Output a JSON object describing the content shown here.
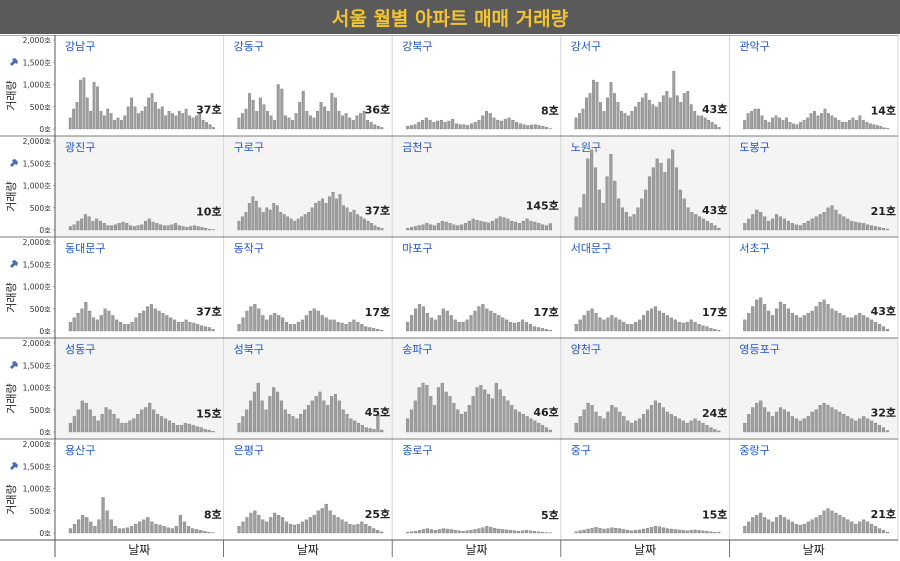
{
  "title": "서울 월별 아파트 매매 거래량",
  "colors": {
    "title_bg": "#5a5a5a",
    "title_fg": "#f3c331",
    "bar": "#9e9e9e",
    "bar_stroke": "#6f6f6f",
    "label": "#1f54c7",
    "alt_row_bg": "#f4f4f4",
    "grid": "#d6d6d6"
  },
  "axes": {
    "ylabel": "거래량",
    "xlabel": "날짜",
    "yticks": [
      "0호",
      "500호",
      "1,000호",
      "1,500호",
      "2,000호"
    ],
    "ylim": [
      0,
      2000
    ],
    "pin_icon": "pin-icon"
  },
  "chart_data": {
    "type": "bar",
    "layout": "small-multiples 5x5",
    "title": "서울 월별 아파트 매매 거래량",
    "ylabel": "거래량",
    "xlabel": "날짜",
    "ylim": [
      0,
      2000
    ],
    "series": [
      {
        "name": "강남구",
        "last_label": "37호",
        "values": [
          250,
          450,
          600,
          1100,
          1150,
          700,
          400,
          1050,
          950,
          400,
          300,
          450,
          350,
          200,
          250,
          200,
          300,
          500,
          700,
          500,
          350,
          400,
          500,
          700,
          800,
          600,
          450,
          500,
          300,
          400,
          350,
          300,
          400,
          350,
          450,
          300,
          250,
          300,
          350,
          200,
          150,
          100,
          37
        ]
      },
      {
        "name": "강동구",
        "last_label": "36호",
        "values": [
          250,
          350,
          450,
          800,
          650,
          400,
          700,
          550,
          400,
          300,
          200,
          1000,
          900,
          300,
          250,
          200,
          350,
          600,
          850,
          400,
          300,
          250,
          400,
          600,
          500,
          400,
          800,
          700,
          400,
          300,
          350,
          250,
          200,
          300,
          350,
          400,
          200,
          150,
          100,
          60,
          36
        ]
      },
      {
        "name": "강북구",
        "last_label": "8호",
        "values": [
          60,
          80,
          100,
          150,
          200,
          250,
          200,
          150,
          180,
          200,
          150,
          180,
          220,
          120,
          100,
          100,
          80,
          120,
          150,
          200,
          300,
          400,
          350,
          250,
          200,
          180,
          220,
          250,
          200,
          150,
          120,
          100,
          80,
          90,
          100,
          80,
          60,
          40,
          8
        ]
      },
      {
        "name": "강서구",
        "last_label": "43호",
        "values": [
          250,
          350,
          450,
          700,
          800,
          1100,
          1050,
          600,
          400,
          700,
          1050,
          800,
          600,
          400,
          350,
          300,
          400,
          500,
          600,
          700,
          800,
          650,
          550,
          500,
          600,
          750,
          850,
          700,
          1300,
          750,
          600,
          800,
          850,
          550,
          400,
          300,
          300,
          250,
          200,
          150,
          100,
          43
        ]
      },
      {
        "name": "관악구",
        "last_label": "14호",
        "values": [
          200,
          350,
          400,
          450,
          450,
          300,
          200,
          150,
          250,
          300,
          250,
          200,
          250,
          150,
          120,
          100,
          150,
          200,
          250,
          350,
          400,
          300,
          350,
          450,
          350,
          300,
          250,
          200,
          150,
          150,
          200,
          250,
          200,
          300,
          200,
          150,
          120,
          100,
          80,
          60,
          30,
          14
        ]
      },
      {
        "name": "광진구",
        "last_label": "10호",
        "values": [
          80,
          120,
          200,
          250,
          350,
          300,
          200,
          250,
          200,
          150,
          100,
          100,
          120,
          150,
          180,
          150,
          100,
          80,
          100,
          120,
          200,
          250,
          180,
          150,
          120,
          100,
          100,
          120,
          150,
          100,
          80,
          60,
          80,
          100,
          80,
          60,
          40,
          20,
          10
        ]
      },
      {
        "name": "구로구",
        "last_label": "37호",
        "values": [
          200,
          300,
          400,
          600,
          750,
          650,
          500,
          400,
          500,
          450,
          600,
          550,
          400,
          350,
          300,
          250,
          200,
          250,
          300,
          350,
          400,
          500,
          600,
          650,
          700,
          600,
          750,
          850,
          700,
          800,
          550,
          500,
          400,
          450,
          350,
          300,
          250,
          200,
          150,
          100,
          60,
          37
        ]
      },
      {
        "name": "금천구",
        "last_label": "145호",
        "values": [
          40,
          60,
          80,
          100,
          120,
          150,
          120,
          100,
          150,
          200,
          180,
          150,
          120,
          100,
          120,
          150,
          200,
          250,
          220,
          200,
          180,
          160,
          200,
          250,
          300,
          280,
          250,
          200,
          180,
          150,
          200,
          250,
          200,
          180,
          150,
          120,
          100,
          145
        ]
      },
      {
        "name": "노원구",
        "last_label": "43호",
        "values": [
          300,
          500,
          800,
          1600,
          1800,
          1400,
          900,
          600,
          1200,
          1700,
          1100,
          700,
          500,
          400,
          300,
          350,
          500,
          700,
          900,
          1200,
          1400,
          1600,
          1500,
          1300,
          1600,
          1800,
          1400,
          900,
          700,
          500,
          400,
          350,
          300,
          250,
          200,
          150,
          100,
          43
        ]
      },
      {
        "name": "도봉구",
        "last_label": "21호",
        "values": [
          150,
          250,
          350,
          450,
          400,
          300,
          200,
          250,
          350,
          300,
          250,
          200,
          150,
          120,
          100,
          150,
          200,
          250,
          300,
          350,
          400,
          500,
          550,
          450,
          350,
          300,
          250,
          200,
          180,
          160,
          150,
          120,
          100,
          80,
          60,
          40,
          21
        ]
      },
      {
        "name": "동대문구",
        "last_label": "37호",
        "values": [
          200,
          300,
          400,
          500,
          650,
          450,
          300,
          250,
          350,
          500,
          450,
          350,
          250,
          200,
          150,
          150,
          200,
          300,
          400,
          450,
          550,
          600,
          500,
          450,
          400,
          350,
          300,
          250,
          200,
          200,
          250,
          200,
          180,
          150,
          120,
          100,
          80,
          37
        ]
      },
      {
        "name": "동작구",
        "last_label": "17호",
        "values": [
          150,
          300,
          450,
          550,
          600,
          500,
          350,
          250,
          350,
          400,
          350,
          300,
          200,
          150,
          150,
          200,
          250,
          350,
          450,
          500,
          450,
          350,
          300,
          250,
          250,
          200,
          180,
          150,
          200,
          250,
          200,
          150,
          100,
          80,
          60,
          40,
          17
        ]
      },
      {
        "name": "마포구",
        "last_label": "17호",
        "values": [
          200,
          350,
          500,
          600,
          550,
          400,
          300,
          250,
          350,
          500,
          450,
          350,
          250,
          200,
          200,
          250,
          350,
          450,
          550,
          600,
          500,
          450,
          400,
          350,
          300,
          250,
          200,
          180,
          200,
          250,
          200,
          150,
          100,
          80,
          60,
          40,
          17
        ]
      },
      {
        "name": "서대문구",
        "last_label": "17호",
        "values": [
          150,
          250,
          350,
          450,
          500,
          400,
          300,
          250,
          300,
          350,
          300,
          250,
          200,
          150,
          150,
          200,
          250,
          350,
          450,
          500,
          550,
          450,
          400,
          350,
          300,
          250,
          200,
          180,
          200,
          250,
          200,
          150,
          120,
          100,
          60,
          40,
          17
        ]
      },
      {
        "name": "서초구",
        "last_label": "43호",
        "values": [
          250,
          400,
          550,
          700,
          750,
          600,
          450,
          350,
          500,
          650,
          600,
          500,
          400,
          350,
          300,
          350,
          400,
          450,
          550,
          650,
          700,
          600,
          500,
          450,
          400,
          350,
          300,
          300,
          350,
          400,
          350,
          300,
          250,
          200,
          150,
          100,
          43
        ]
      },
      {
        "name": "성동구",
        "last_label": "15호",
        "values": [
          200,
          350,
          500,
          700,
          650,
          500,
          350,
          250,
          400,
          550,
          500,
          400,
          300,
          200,
          200,
          250,
          300,
          400,
          500,
          550,
          650,
          500,
          400,
          350,
          300,
          250,
          200,
          150,
          150,
          200,
          180,
          150,
          120,
          100,
          60,
          40,
          15
        ]
      },
      {
        "name": "성북구",
        "last_label": "45호",
        "values": [
          200,
          350,
          500,
          700,
          900,
          1100,
          700,
          500,
          800,
          1000,
          900,
          700,
          500,
          400,
          350,
          300,
          400,
          500,
          600,
          700,
          800,
          900,
          700,
          600,
          800,
          850,
          700,
          500,
          400,
          300,
          250,
          200,
          150,
          100,
          80,
          60,
          400,
          45
        ]
      },
      {
        "name": "송파구",
        "last_label": "46호",
        "values": [
          300,
          500,
          700,
          1000,
          1100,
          1050,
          800,
          600,
          1000,
          1100,
          900,
          800,
          650,
          500,
          400,
          450,
          600,
          800,
          1000,
          1050,
          950,
          850,
          750,
          1100,
          950,
          800,
          700,
          600,
          500,
          450,
          400,
          350,
          300,
          250,
          200,
          150,
          100,
          46
        ]
      },
      {
        "name": "양천구",
        "last_label": "24호",
        "values": [
          200,
          350,
          500,
          650,
          600,
          450,
          350,
          300,
          450,
          600,
          550,
          450,
          350,
          250,
          200,
          250,
          300,
          400,
          500,
          600,
          700,
          650,
          550,
          450,
          400,
          350,
          300,
          250,
          200,
          250,
          300,
          250,
          200,
          150,
          100,
          60,
          24
        ]
      },
      {
        "name": "영등포구",
        "last_label": "32호",
        "values": [
          200,
          400,
          550,
          650,
          700,
          550,
          450,
          350,
          450,
          550,
          500,
          450,
          350,
          300,
          250,
          300,
          350,
          450,
          500,
          600,
          650,
          600,
          550,
          500,
          450,
          400,
          350,
          300,
          250,
          300,
          350,
          300,
          250,
          200,
          150,
          100,
          32
        ]
      },
      {
        "name": "용산구",
        "last_label": "8호",
        "values": [
          100,
          200,
          300,
          400,
          350,
          250,
          150,
          300,
          800,
          500,
          300,
          150,
          100,
          100,
          120,
          150,
          200,
          250,
          300,
          350,
          250,
          200,
          180,
          150,
          120,
          100,
          150,
          400,
          250,
          150,
          100,
          80,
          60,
          40,
          20,
          8
        ]
      },
      {
        "name": "은평구",
        "last_label": "25호",
        "values": [
          150,
          250,
          350,
          450,
          500,
          400,
          300,
          250,
          350,
          450,
          400,
          350,
          250,
          200,
          180,
          200,
          250,
          300,
          350,
          400,
          500,
          550,
          650,
          500,
          400,
          350,
          300,
          250,
          200,
          180,
          200,
          250,
          200,
          150,
          100,
          60,
          25
        ]
      },
      {
        "name": "종로구",
        "last_label": "5호",
        "values": [
          20,
          30,
          40,
          60,
          80,
          100,
          80,
          60,
          80,
          100,
          90,
          80,
          60,
          50,
          40,
          50,
          60,
          80,
          100,
          120,
          150,
          130,
          110,
          90,
          80,
          70,
          60,
          50,
          40,
          50,
          60,
          50,
          40,
          30,
          20,
          10,
          5
        ]
      },
      {
        "name": "중구",
        "last_label": "15호",
        "values": [
          30,
          50,
          70,
          90,
          110,
          130,
          110,
          90,
          100,
          120,
          110,
          100,
          80,
          60,
          50,
          60,
          70,
          90,
          110,
          130,
          150,
          140,
          120,
          100,
          90,
          80,
          70,
          60,
          50,
          60,
          70,
          60,
          50,
          40,
          30,
          20,
          15
        ]
      },
      {
        "name": "중랑구",
        "last_label": "21호",
        "values": [
          150,
          250,
          350,
          400,
          450,
          350,
          300,
          250,
          350,
          400,
          350,
          300,
          250,
          200,
          180,
          200,
          250,
          300,
          350,
          400,
          500,
          550,
          500,
          450,
          400,
          350,
          300,
          250,
          200,
          250,
          300,
          250,
          200,
          150,
          100,
          60,
          21
        ]
      }
    ]
  }
}
